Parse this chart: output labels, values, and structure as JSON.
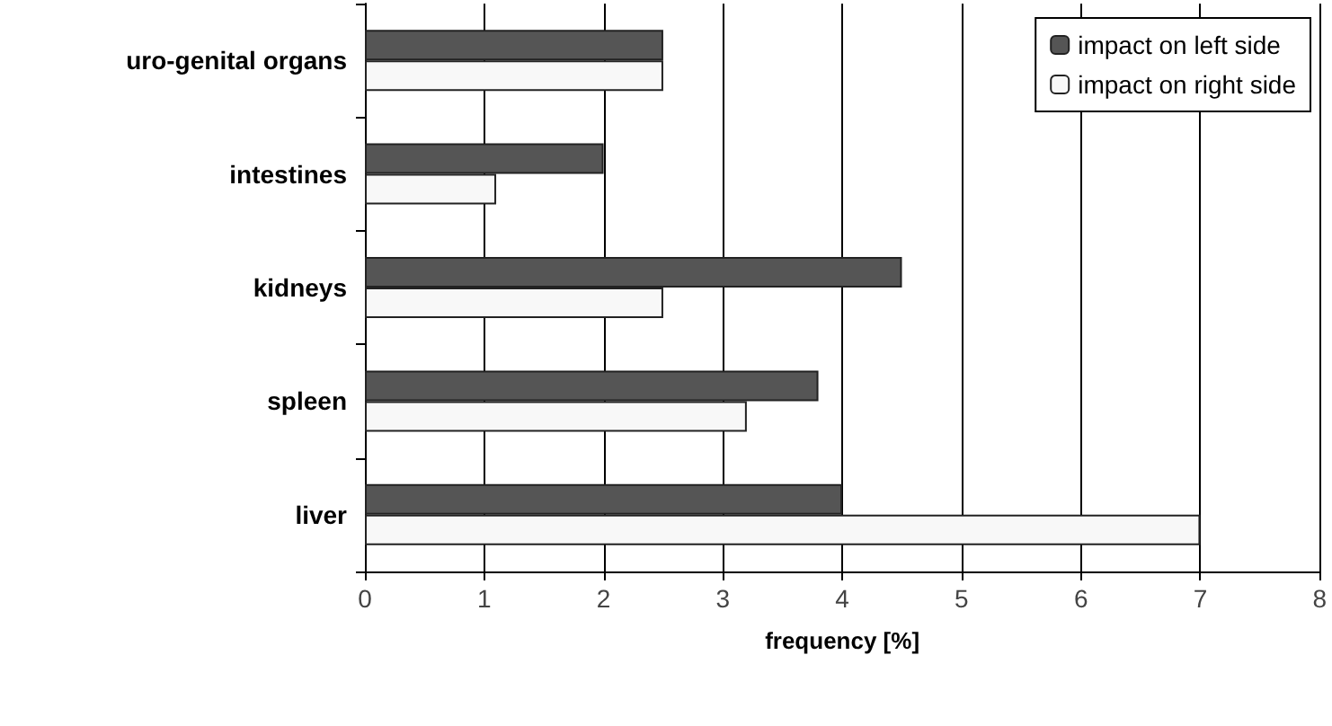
{
  "chart_data": {
    "type": "bar",
    "orientation": "horizontal",
    "xlabel": "frequency [%]",
    "categories": [
      "uro-genital organs",
      "intestines",
      "kidneys",
      "spleen",
      "liver"
    ],
    "series": [
      {
        "name": "impact on left side",
        "color": "#555555",
        "values": [
          2.5,
          2.0,
          4.5,
          3.8,
          4.0
        ]
      },
      {
        "name": "impact on right side",
        "color": "#f8f8f8",
        "values": [
          2.5,
          1.1,
          2.5,
          3.2,
          7.0
        ]
      }
    ],
    "xlim": [
      0,
      8
    ],
    "xticks": [
      0,
      1,
      2,
      3,
      4,
      5,
      6,
      7,
      8
    ],
    "grid": "x",
    "legend": "top right"
  }
}
